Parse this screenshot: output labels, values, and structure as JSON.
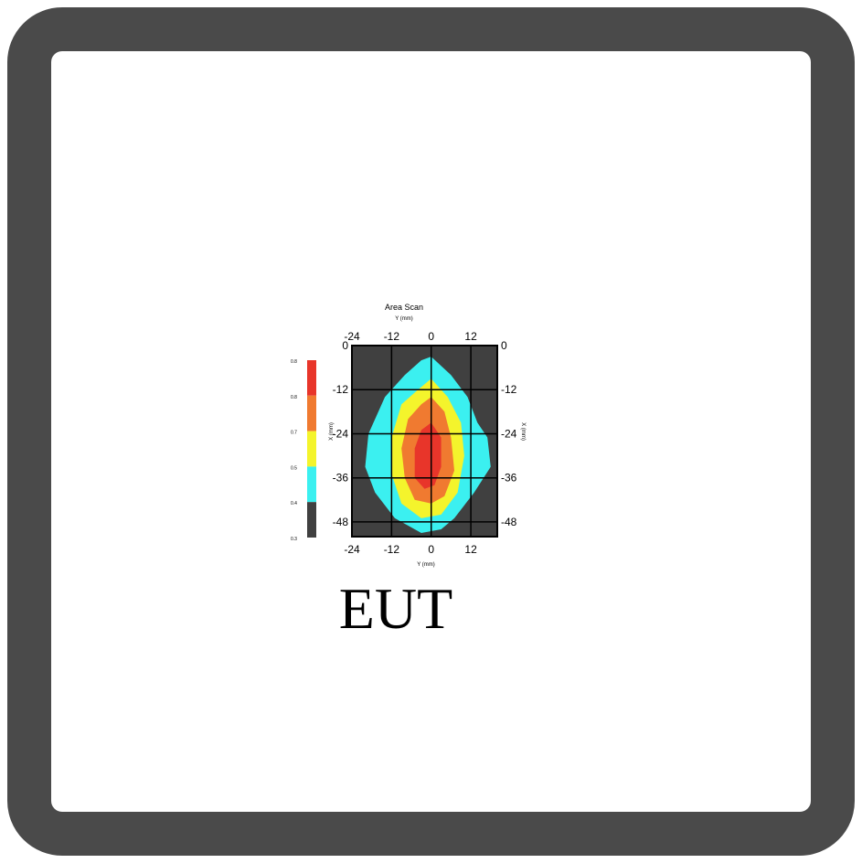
{
  "frame": {
    "color": "#4a4a4a"
  },
  "chart_data": {
    "type": "heatmap",
    "title": "Area Scan",
    "xlabel": "Y (mm)",
    "ylabel": "X (mm)",
    "xlim": [
      -24,
      20
    ],
    "ylim": [
      0,
      -52
    ],
    "x_ticks": [
      "-24",
      "-12",
      "0",
      "12"
    ],
    "y_ticks": [
      "0",
      "-12",
      "-24",
      "-36",
      "-48"
    ],
    "legend_levels": [
      "0.8",
      "0.8",
      "0.7",
      "0.5",
      "0.4",
      "0.3"
    ],
    "colors": {
      "background": "#404040",
      "level1": "#3bf0f0",
      "level2": "#f4f42c",
      "level3": "#f07a30",
      "level4": "#e8352a"
    },
    "contours": [
      {
        "level": 1,
        "color": "#3bf0f0",
        "points": [
          [
            0,
            -3
          ],
          [
            6,
            -8
          ],
          [
            11,
            -14
          ],
          [
            14,
            -21
          ],
          [
            17,
            -25
          ],
          [
            18,
            -33
          ],
          [
            13,
            -40
          ],
          [
            7,
            -47
          ],
          [
            3,
            -50
          ],
          [
            -3,
            -51
          ],
          [
            -11,
            -47
          ],
          [
            -17,
            -40
          ],
          [
            -20,
            -33
          ],
          [
            -19,
            -24
          ],
          [
            -14,
            -14
          ],
          [
            -8,
            -8
          ],
          [
            -3,
            -4
          ]
        ]
      },
      {
        "level": 2,
        "color": "#f4f42c",
        "points": [
          [
            0,
            -9
          ],
          [
            5,
            -14
          ],
          [
            9,
            -21
          ],
          [
            10,
            -30
          ],
          [
            8,
            -40
          ],
          [
            3,
            -46
          ],
          [
            -3,
            -47
          ],
          [
            -9,
            -43
          ],
          [
            -12,
            -35
          ],
          [
            -12,
            -25
          ],
          [
            -9,
            -16
          ],
          [
            -4,
            -12
          ]
        ]
      },
      {
        "level": 3,
        "color": "#f07a30",
        "points": [
          [
            0,
            -14
          ],
          [
            4,
            -18
          ],
          [
            6,
            -25
          ],
          [
            7,
            -34
          ],
          [
            4,
            -41
          ],
          [
            0,
            -43
          ],
          [
            -5,
            -42
          ],
          [
            -8,
            -36
          ],
          [
            -9,
            -28
          ],
          [
            -7,
            -20
          ],
          [
            -3,
            -16
          ]
        ]
      },
      {
        "level": 4,
        "color": "#e8352a",
        "points": [
          [
            0,
            -21
          ],
          [
            3,
            -25
          ],
          [
            3,
            -33
          ],
          [
            1,
            -38
          ],
          [
            -2,
            -39
          ],
          [
            -5,
            -36
          ],
          [
            -5,
            -28
          ],
          [
            -3,
            -23
          ]
        ]
      }
    ]
  },
  "caption": {
    "label": "EUT"
  }
}
